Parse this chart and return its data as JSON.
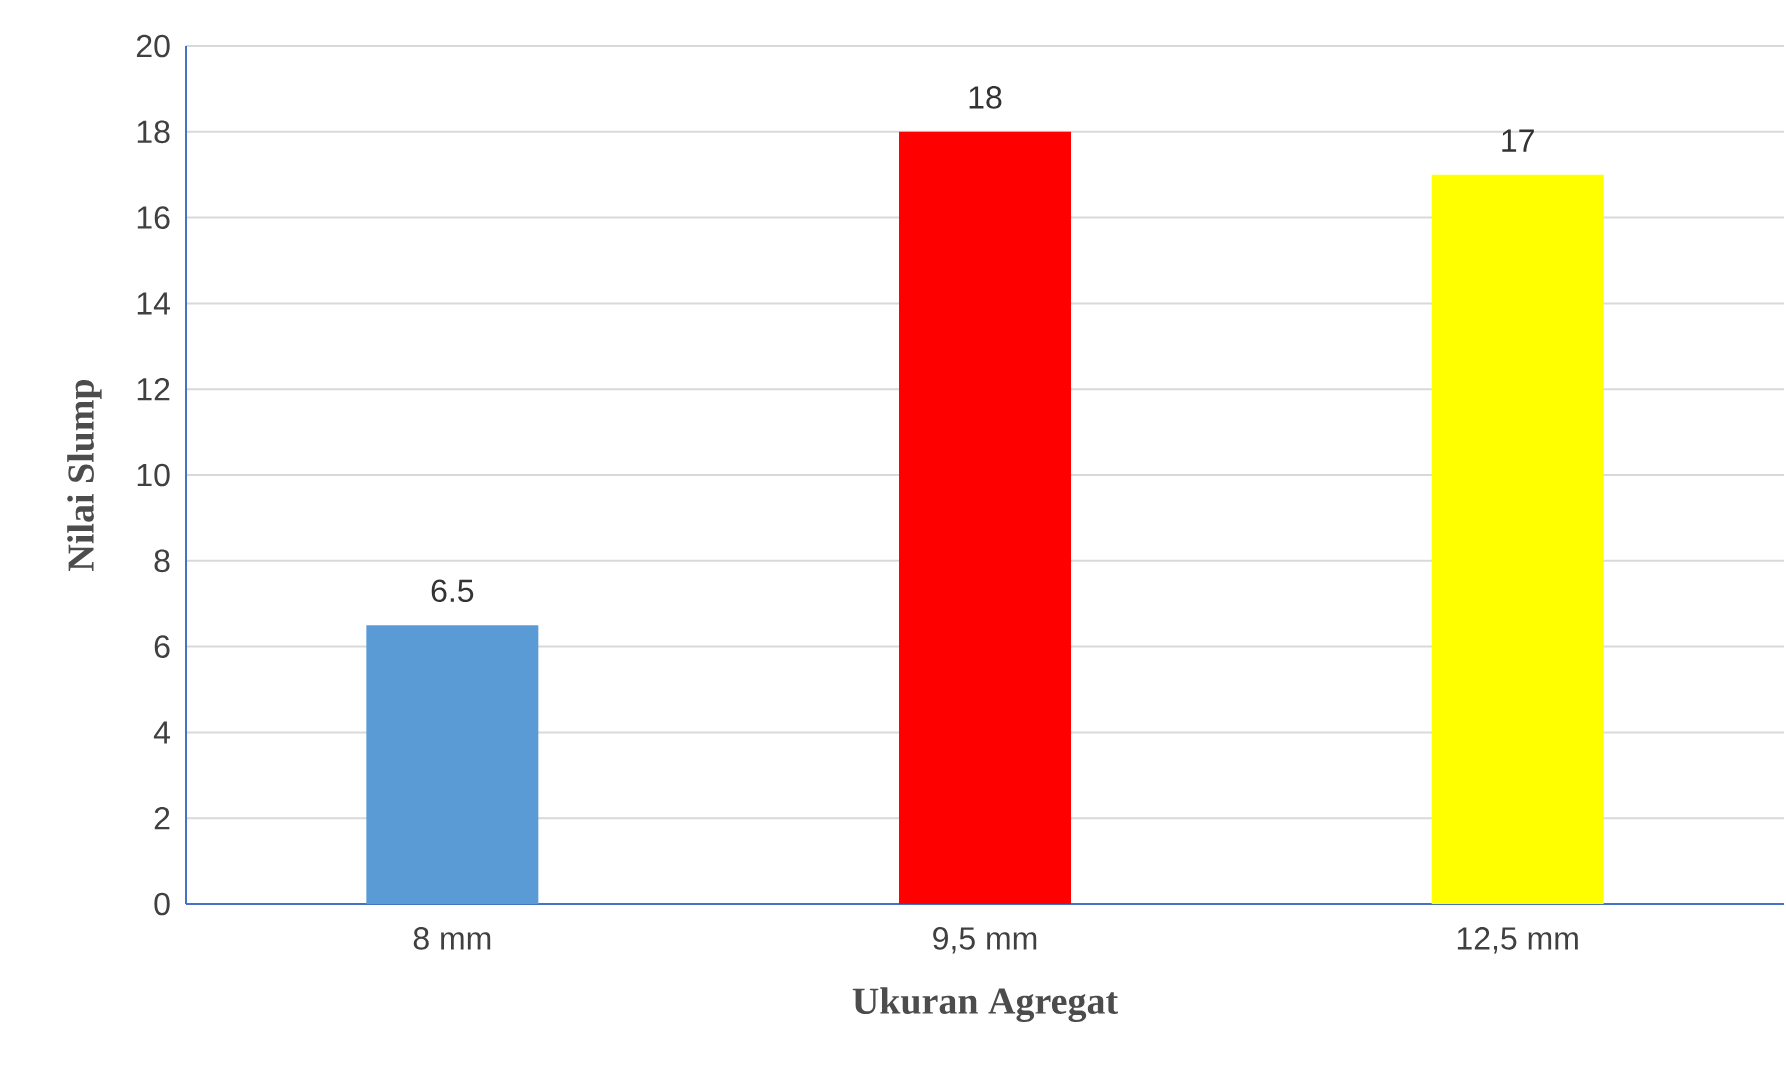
{
  "chart_data": {
    "type": "bar",
    "xlabel": "Ukuran Agregat",
    "ylabel": "Nilai Slump",
    "categories": [
      "8 mm",
      "9,5 mm",
      "12,5 mm"
    ],
    "values": [
      6.5,
      18,
      17
    ],
    "colors": [
      "#5b9bd5",
      "#ff0000",
      "#ffff00"
    ],
    "ylim": [
      0,
      20
    ],
    "yticks": [
      0,
      2,
      4,
      6,
      8,
      10,
      12,
      14,
      16,
      18,
      20
    ],
    "grid": "y",
    "data_labels": true
  }
}
